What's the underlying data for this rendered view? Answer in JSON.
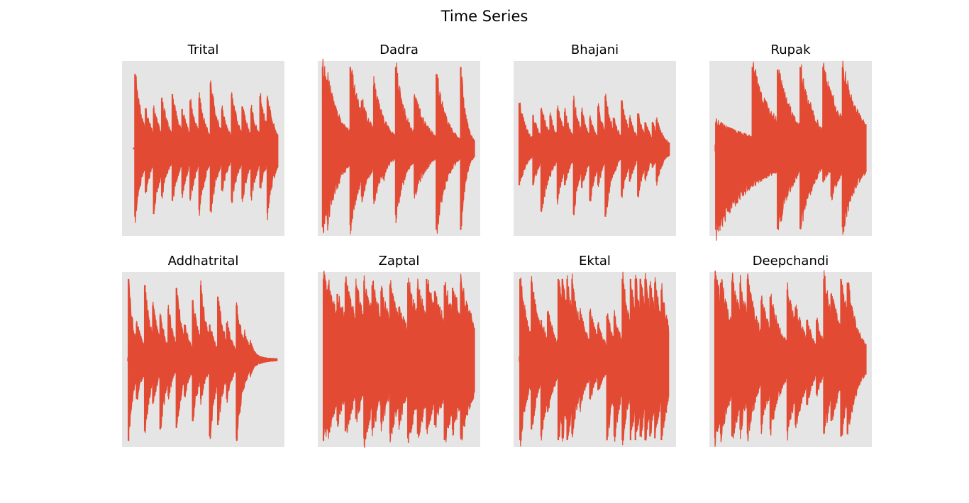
{
  "figure": {
    "title": "Time Series"
  },
  "style": {
    "line_color": "#e24a33",
    "axes_background": "#e5e5e5",
    "grid": false,
    "ticks_visible": false
  },
  "chart_data": [
    {
      "type": "line",
      "title": "Trital",
      "events": [
        {
          "t": 0.08,
          "pos": 0.85,
          "neg": 0.78,
          "decay": 0.045,
          "sustain": 0.04
        },
        {
          "t": 0.145,
          "pos": 0.46,
          "neg": 0.5,
          "decay": 0.045,
          "sustain": 0.04
        },
        {
          "t": 0.195,
          "pos": 0.46,
          "neg": 0.75,
          "decay": 0.045,
          "sustain": 0.04
        },
        {
          "t": 0.245,
          "pos": 0.58,
          "neg": 0.55,
          "decay": 0.045,
          "sustain": 0.04
        },
        {
          "t": 0.31,
          "pos": 0.62,
          "neg": 0.6,
          "decay": 0.045,
          "sustain": 0.04
        },
        {
          "t": 0.37,
          "pos": 0.45,
          "neg": 0.52,
          "decay": 0.045,
          "sustain": 0.04
        },
        {
          "t": 0.42,
          "pos": 0.55,
          "neg": 0.58,
          "decay": 0.045,
          "sustain": 0.04
        },
        {
          "t": 0.475,
          "pos": 0.58,
          "neg": 0.7,
          "decay": 0.045,
          "sustain": 0.04
        },
        {
          "t": 0.545,
          "pos": 0.75,
          "neg": 0.72,
          "decay": 0.045,
          "sustain": 0.04
        },
        {
          "t": 0.615,
          "pos": 0.45,
          "neg": 0.48,
          "decay": 0.045,
          "sustain": 0.04
        },
        {
          "t": 0.675,
          "pos": 0.62,
          "neg": 0.6,
          "decay": 0.045,
          "sustain": 0.04
        },
        {
          "t": 0.74,
          "pos": 0.48,
          "neg": 0.58,
          "decay": 0.045,
          "sustain": 0.04
        },
        {
          "t": 0.795,
          "pos": 0.46,
          "neg": 0.55,
          "decay": 0.045,
          "sustain": 0.04
        },
        {
          "t": 0.85,
          "pos": 0.6,
          "neg": 0.45,
          "decay": 0.045,
          "sustain": 0.04
        },
        {
          "t": 0.895,
          "pos": 0.58,
          "neg": 0.74,
          "decay": 0.045,
          "sustain": 0.04
        },
        {
          "t": 0.94,
          "pos": 0.2,
          "neg": 0.25,
          "decay": 0.03,
          "sustain": 0.04
        }
      ],
      "start": 0.07,
      "end": 0.96,
      "noise": 0.02,
      "tail_lead": 0.03,
      "tail_trail": 0.0
    },
    {
      "type": "line",
      "title": "Dadra",
      "events": [
        {
          "t": 0.03,
          "pos": 0.93,
          "neg": 0.9,
          "decay": 0.09,
          "sustain": 0.08
        },
        {
          "t": 0.06,
          "pos": 0.78,
          "neg": 0.82,
          "decay": 0.08,
          "sustain": 0.06
        },
        {
          "t": 0.145,
          "pos": 0.28,
          "neg": 0.28,
          "decay": 0.04,
          "sustain": 0.06
        },
        {
          "t": 0.2,
          "pos": 0.93,
          "neg": 0.88,
          "decay": 0.07,
          "sustain": 0.06
        },
        {
          "t": 0.27,
          "pos": 0.55,
          "neg": 0.55,
          "decay": 0.07,
          "sustain": 0.06
        },
        {
          "t": 0.345,
          "pos": 0.72,
          "neg": 0.58,
          "decay": 0.07,
          "sustain": 0.06
        },
        {
          "t": 0.405,
          "pos": 0.3,
          "neg": 0.35,
          "decay": 0.04,
          "sustain": 0.06
        },
        {
          "t": 0.48,
          "pos": 0.93,
          "neg": 0.76,
          "decay": 0.06,
          "sustain": 0.06
        },
        {
          "t": 0.53,
          "pos": 0.3,
          "neg": 0.3,
          "decay": 0.04,
          "sustain": 0.06
        },
        {
          "t": 0.595,
          "pos": 0.6,
          "neg": 0.52,
          "decay": 0.08,
          "sustain": 0.06
        },
        {
          "t": 0.73,
          "pos": 0.85,
          "neg": 0.93,
          "decay": 0.06,
          "sustain": 0.06
        },
        {
          "t": 0.79,
          "pos": 0.35,
          "neg": 0.3,
          "decay": 0.05,
          "sustain": 0.06
        },
        {
          "t": 0.88,
          "pos": 0.93,
          "neg": 0.93,
          "decay": 0.03,
          "sustain": 0.06
        },
        {
          "t": 0.92,
          "pos": 0.08,
          "neg": 0.1,
          "decay": 0.05,
          "sustain": 0.06
        }
      ],
      "start": 0.03,
      "end": 0.965,
      "noise": 0.03,
      "tail_lead": 0.0,
      "tail_trail": 0.0
    },
    {
      "type": "line",
      "title": "Bhajani",
      "events": [
        {
          "t": 0.035,
          "pos": 0.52,
          "neg": 0.42,
          "decay": 0.045,
          "sustain": 0.1
        },
        {
          "t": 0.12,
          "pos": 0.38,
          "neg": 0.42,
          "decay": 0.04,
          "sustain": 0.1
        },
        {
          "t": 0.17,
          "pos": 0.45,
          "neg": 0.72,
          "decay": 0.05,
          "sustain": 0.1
        },
        {
          "t": 0.225,
          "pos": 0.38,
          "neg": 0.3,
          "decay": 0.04,
          "sustain": 0.1
        },
        {
          "t": 0.27,
          "pos": 0.45,
          "neg": 0.58,
          "decay": 0.045,
          "sustain": 0.1
        },
        {
          "t": 0.315,
          "pos": 0.42,
          "neg": 0.42,
          "decay": 0.04,
          "sustain": 0.1
        },
        {
          "t": 0.37,
          "pos": 0.55,
          "neg": 0.75,
          "decay": 0.04,
          "sustain": 0.1
        },
        {
          "t": 0.42,
          "pos": 0.42,
          "neg": 0.45,
          "decay": 0.04,
          "sustain": 0.1
        },
        {
          "t": 0.47,
          "pos": 0.35,
          "neg": 0.6,
          "decay": 0.04,
          "sustain": 0.1
        },
        {
          "t": 0.52,
          "pos": 0.48,
          "neg": 0.42,
          "decay": 0.04,
          "sustain": 0.1
        },
        {
          "t": 0.565,
          "pos": 0.6,
          "neg": 0.78,
          "decay": 0.04,
          "sustain": 0.1
        },
        {
          "t": 0.615,
          "pos": 0.35,
          "neg": 0.3,
          "decay": 0.04,
          "sustain": 0.1
        },
        {
          "t": 0.665,
          "pos": 0.55,
          "neg": 0.55,
          "decay": 0.04,
          "sustain": 0.1
        },
        {
          "t": 0.715,
          "pos": 0.35,
          "neg": 0.38,
          "decay": 0.04,
          "sustain": 0.1
        },
        {
          "t": 0.765,
          "pos": 0.4,
          "neg": 0.55,
          "decay": 0.04,
          "sustain": 0.1
        },
        {
          "t": 0.81,
          "pos": 0.3,
          "neg": 0.35,
          "decay": 0.04,
          "sustain": 0.1
        },
        {
          "t": 0.855,
          "pos": 0.3,
          "neg": 0.22,
          "decay": 0.04,
          "sustain": 0.1
        },
        {
          "t": 0.88,
          "pos": 0.33,
          "neg": 0.38,
          "decay": 0.04,
          "sustain": 0.1
        }
      ],
      "start": 0.035,
      "end": 0.96,
      "noise": 0.02,
      "tail_lead": 0.0,
      "tail_trail": 0.08
    },
    {
      "type": "line",
      "title": "Rupak",
      "events": [
        {
          "t": 0.04,
          "pos": 0.3,
          "neg": 0.93,
          "decay": 0.2,
          "sustain": 0.2
        },
        {
          "t": 0.14,
          "pos": 0.2,
          "neg": 0.2,
          "decay": 0.15,
          "sustain": 0.2
        },
        {
          "t": 0.265,
          "pos": 0.93,
          "neg": 0.22,
          "decay": 0.1,
          "sustain": 0.2
        },
        {
          "t": 0.33,
          "pos": 0.3,
          "neg": 0.35,
          "decay": 0.07,
          "sustain": 0.2
        },
        {
          "t": 0.42,
          "pos": 0.9,
          "neg": 0.92,
          "decay": 0.08,
          "sustain": 0.2
        },
        {
          "t": 0.46,
          "pos": 0.5,
          "neg": 0.55,
          "decay": 0.08,
          "sustain": 0.2
        },
        {
          "t": 0.56,
          "pos": 0.93,
          "neg": 0.92,
          "decay": 0.06,
          "sustain": 0.2
        },
        {
          "t": 0.62,
          "pos": 0.48,
          "neg": 0.5,
          "decay": 0.07,
          "sustain": 0.2
        },
        {
          "t": 0.7,
          "pos": 0.93,
          "neg": 0.38,
          "decay": 0.08,
          "sustain": 0.2
        },
        {
          "t": 0.75,
          "pos": 0.62,
          "neg": 0.55,
          "decay": 0.07,
          "sustain": 0.2
        },
        {
          "t": 0.82,
          "pos": 0.93,
          "neg": 0.9,
          "decay": 0.08,
          "sustain": 0.2
        },
        {
          "t": 0.87,
          "pos": 0.15,
          "neg": 0.25,
          "decay": 0.05,
          "sustain": 0.2
        }
      ],
      "start": 0.035,
      "end": 0.965,
      "noise": 0.03,
      "tail_lead": 0.0,
      "tail_trail": 0.0
    },
    {
      "type": "line",
      "title": "Addhatrital",
      "events": [
        {
          "t": 0.04,
          "pos": 0.92,
          "neg": 0.93,
          "decay": 0.03,
          "sustain": 0.04
        },
        {
          "t": 0.09,
          "pos": 0.42,
          "neg": 0.45,
          "decay": 0.045,
          "sustain": 0.04
        },
        {
          "t": 0.14,
          "pos": 0.85,
          "neg": 0.82,
          "decay": 0.04,
          "sustain": 0.04
        },
        {
          "t": 0.19,
          "pos": 0.62,
          "neg": 0.5,
          "decay": 0.04,
          "sustain": 0.04
        },
        {
          "t": 0.235,
          "pos": 0.5,
          "neg": 0.8,
          "decay": 0.04,
          "sustain": 0.04
        },
        {
          "t": 0.285,
          "pos": 0.58,
          "neg": 0.42,
          "decay": 0.04,
          "sustain": 0.04
        },
        {
          "t": 0.335,
          "pos": 0.82,
          "neg": 0.78,
          "decay": 0.04,
          "sustain": 0.04
        },
        {
          "t": 0.385,
          "pos": 0.4,
          "neg": 0.42,
          "decay": 0.04,
          "sustain": 0.04
        },
        {
          "t": 0.435,
          "pos": 0.68,
          "neg": 0.7,
          "decay": 0.04,
          "sustain": 0.04
        },
        {
          "t": 0.485,
          "pos": 0.85,
          "neg": 0.45,
          "decay": 0.04,
          "sustain": 0.04
        },
        {
          "t": 0.54,
          "pos": 0.4,
          "neg": 0.88,
          "decay": 0.04,
          "sustain": 0.04
        },
        {
          "t": 0.59,
          "pos": 0.72,
          "neg": 0.75,
          "decay": 0.04,
          "sustain": 0.04
        },
        {
          "t": 0.645,
          "pos": 0.42,
          "neg": 0.45,
          "decay": 0.04,
          "sustain": 0.04
        },
        {
          "t": 0.705,
          "pos": 0.62,
          "neg": 0.9,
          "decay": 0.04,
          "sustain": 0.04
        },
        {
          "t": 0.755,
          "pos": 0.3,
          "neg": 0.25,
          "decay": 0.04,
          "sustain": 0.04
        },
        {
          "t": 0.79,
          "pos": 0.2,
          "neg": 0.18,
          "decay": 0.03,
          "sustain": 0.04
        }
      ],
      "start": 0.035,
      "end": 0.955,
      "noise": 0.02,
      "tail_lead": 0.0,
      "tail_trail": 0.15
    },
    {
      "type": "line",
      "title": "Zaptal",
      "events": [
        {
          "t": 0.035,
          "pos": 0.92,
          "neg": 0.93,
          "decay": 0.08,
          "sustain": 0.25
        },
        {
          "t": 0.065,
          "pos": 0.85,
          "neg": 0.82,
          "decay": 0.07,
          "sustain": 0.25
        },
        {
          "t": 0.12,
          "pos": 0.75,
          "neg": 0.7,
          "decay": 0.07,
          "sustain": 0.25
        },
        {
          "t": 0.17,
          "pos": 0.88,
          "neg": 0.82,
          "decay": 0.07,
          "sustain": 0.25
        },
        {
          "t": 0.235,
          "pos": 0.82,
          "neg": 0.68,
          "decay": 0.07,
          "sustain": 0.25
        },
        {
          "t": 0.285,
          "pos": 0.9,
          "neg": 0.9,
          "decay": 0.07,
          "sustain": 0.25
        },
        {
          "t": 0.335,
          "pos": 0.85,
          "neg": 0.8,
          "decay": 0.07,
          "sustain": 0.25
        },
        {
          "t": 0.39,
          "pos": 0.78,
          "neg": 0.72,
          "decay": 0.07,
          "sustain": 0.25
        },
        {
          "t": 0.445,
          "pos": 0.85,
          "neg": 0.85,
          "decay": 0.07,
          "sustain": 0.25
        },
        {
          "t": 0.5,
          "pos": 0.6,
          "neg": 0.7,
          "decay": 0.07,
          "sustain": 0.25
        },
        {
          "t": 0.555,
          "pos": 0.88,
          "neg": 0.9,
          "decay": 0.07,
          "sustain": 0.25
        },
        {
          "t": 0.615,
          "pos": 0.82,
          "neg": 0.85,
          "decay": 0.07,
          "sustain": 0.25
        },
        {
          "t": 0.67,
          "pos": 0.92,
          "neg": 0.8,
          "decay": 0.07,
          "sustain": 0.25
        },
        {
          "t": 0.72,
          "pos": 0.78,
          "neg": 0.75,
          "decay": 0.07,
          "sustain": 0.25
        },
        {
          "t": 0.78,
          "pos": 0.85,
          "neg": 0.92,
          "decay": 0.07,
          "sustain": 0.25
        },
        {
          "t": 0.83,
          "pos": 0.82,
          "neg": 0.8,
          "decay": 0.07,
          "sustain": 0.25
        },
        {
          "t": 0.88,
          "pos": 0.88,
          "neg": 0.88,
          "decay": 0.07,
          "sustain": 0.25
        },
        {
          "t": 0.92,
          "pos": 0.62,
          "neg": 0.6,
          "decay": 0.06,
          "sustain": 0.25
        }
      ],
      "start": 0.035,
      "end": 0.965,
      "noise": 0.04,
      "tail_lead": 0.0,
      "tail_trail": 0.0
    },
    {
      "type": "line",
      "title": "Ektal",
      "events": [
        {
          "t": 0.04,
          "pos": 0.92,
          "neg": 0.92,
          "decay": 0.05,
          "sustain": 0.1
        },
        {
          "t": 0.11,
          "pos": 0.9,
          "neg": 0.8,
          "decay": 0.05,
          "sustain": 0.1
        },
        {
          "t": 0.17,
          "pos": 0.45,
          "neg": 0.88,
          "decay": 0.05,
          "sustain": 0.1
        },
        {
          "t": 0.21,
          "pos": 0.55,
          "neg": 0.6,
          "decay": 0.05,
          "sustain": 0.1
        },
        {
          "t": 0.275,
          "pos": 0.92,
          "neg": 0.92,
          "decay": 0.05,
          "sustain": 0.1
        },
        {
          "t": 0.3,
          "pos": 0.92,
          "neg": 0.9,
          "decay": 0.05,
          "sustain": 0.1
        },
        {
          "t": 0.33,
          "pos": 0.92,
          "neg": 0.92,
          "decay": 0.05,
          "sustain": 0.1
        },
        {
          "t": 0.36,
          "pos": 0.92,
          "neg": 0.85,
          "decay": 0.05,
          "sustain": 0.1
        },
        {
          "t": 0.41,
          "pos": 0.55,
          "neg": 0.55,
          "decay": 0.05,
          "sustain": 0.1
        },
        {
          "t": 0.47,
          "pos": 0.55,
          "neg": 0.45,
          "decay": 0.05,
          "sustain": 0.1
        },
        {
          "t": 0.52,
          "pos": 0.4,
          "neg": 0.35,
          "decay": 0.05,
          "sustain": 0.1
        },
        {
          "t": 0.575,
          "pos": 0.5,
          "neg": 0.92,
          "decay": 0.05,
          "sustain": 0.1
        },
        {
          "t": 0.62,
          "pos": 0.5,
          "neg": 0.88,
          "decay": 0.05,
          "sustain": 0.1
        },
        {
          "t": 0.67,
          "pos": 0.92,
          "neg": 0.92,
          "decay": 0.05,
          "sustain": 0.1
        },
        {
          "t": 0.72,
          "pos": 0.92,
          "neg": 0.92,
          "decay": 0.05,
          "sustain": 0.1
        },
        {
          "t": 0.75,
          "pos": 0.92,
          "neg": 0.92,
          "decay": 0.05,
          "sustain": 0.1
        },
        {
          "t": 0.78,
          "pos": 0.92,
          "neg": 0.88,
          "decay": 0.05,
          "sustain": 0.1
        },
        {
          "t": 0.81,
          "pos": 0.92,
          "neg": 0.92,
          "decay": 0.05,
          "sustain": 0.1
        },
        {
          "t": 0.84,
          "pos": 0.85,
          "neg": 0.88,
          "decay": 0.05,
          "sustain": 0.1
        },
        {
          "t": 0.87,
          "pos": 0.88,
          "neg": 0.9,
          "decay": 0.05,
          "sustain": 0.1
        },
        {
          "t": 0.91,
          "pos": 0.8,
          "neg": 0.92,
          "decay": 0.05,
          "sustain": 0.1
        }
      ],
      "start": 0.035,
      "end": 0.955,
      "noise": 0.03,
      "tail_lead": 0.0,
      "tail_trail": 0.0
    },
    {
      "type": "line",
      "title": "Deepchandi",
      "events": [
        {
          "t": 0.035,
          "pos": 0.92,
          "neg": 0.9,
          "decay": 0.1,
          "sustain": 0.05
        },
        {
          "t": 0.07,
          "pos": 0.88,
          "neg": 0.85,
          "decay": 0.08,
          "sustain": 0.05
        },
        {
          "t": 0.14,
          "pos": 0.9,
          "neg": 0.88,
          "decay": 0.08,
          "sustain": 0.05
        },
        {
          "t": 0.19,
          "pos": 0.88,
          "neg": 0.8,
          "decay": 0.07,
          "sustain": 0.05
        },
        {
          "t": 0.235,
          "pos": 0.92,
          "neg": 0.85,
          "decay": 0.07,
          "sustain": 0.05
        },
        {
          "t": 0.32,
          "pos": 0.68,
          "neg": 0.75,
          "decay": 0.07,
          "sustain": 0.05
        },
        {
          "t": 0.375,
          "pos": 0.72,
          "neg": 0.8,
          "decay": 0.07,
          "sustain": 0.05
        },
        {
          "t": 0.48,
          "pos": 0.8,
          "neg": 0.82,
          "decay": 0.07,
          "sustain": 0.05
        },
        {
          "t": 0.53,
          "pos": 0.6,
          "neg": 0.75,
          "decay": 0.07,
          "sustain": 0.05
        },
        {
          "t": 0.6,
          "pos": 0.45,
          "neg": 0.52,
          "decay": 0.05,
          "sustain": 0.05
        },
        {
          "t": 0.66,
          "pos": 0.45,
          "neg": 0.4,
          "decay": 0.05,
          "sustain": 0.05
        },
        {
          "t": 0.705,
          "pos": 0.92,
          "neg": 0.85,
          "decay": 0.07,
          "sustain": 0.05
        },
        {
          "t": 0.75,
          "pos": 0.75,
          "neg": 0.7,
          "decay": 0.07,
          "sustain": 0.05
        },
        {
          "t": 0.81,
          "pos": 0.92,
          "neg": 0.88,
          "decay": 0.06,
          "sustain": 0.05
        },
        {
          "t": 0.85,
          "pos": 0.88,
          "neg": 0.85,
          "decay": 0.06,
          "sustain": 0.05
        },
        {
          "t": 0.87,
          "pos": 0.6,
          "neg": 0.55,
          "decay": 0.06,
          "sustain": 0.05
        }
      ],
      "start": 0.035,
      "end": 0.965,
      "noise": 0.02,
      "tail_lead": 0.0,
      "tail_trail": 0.0
    }
  ]
}
